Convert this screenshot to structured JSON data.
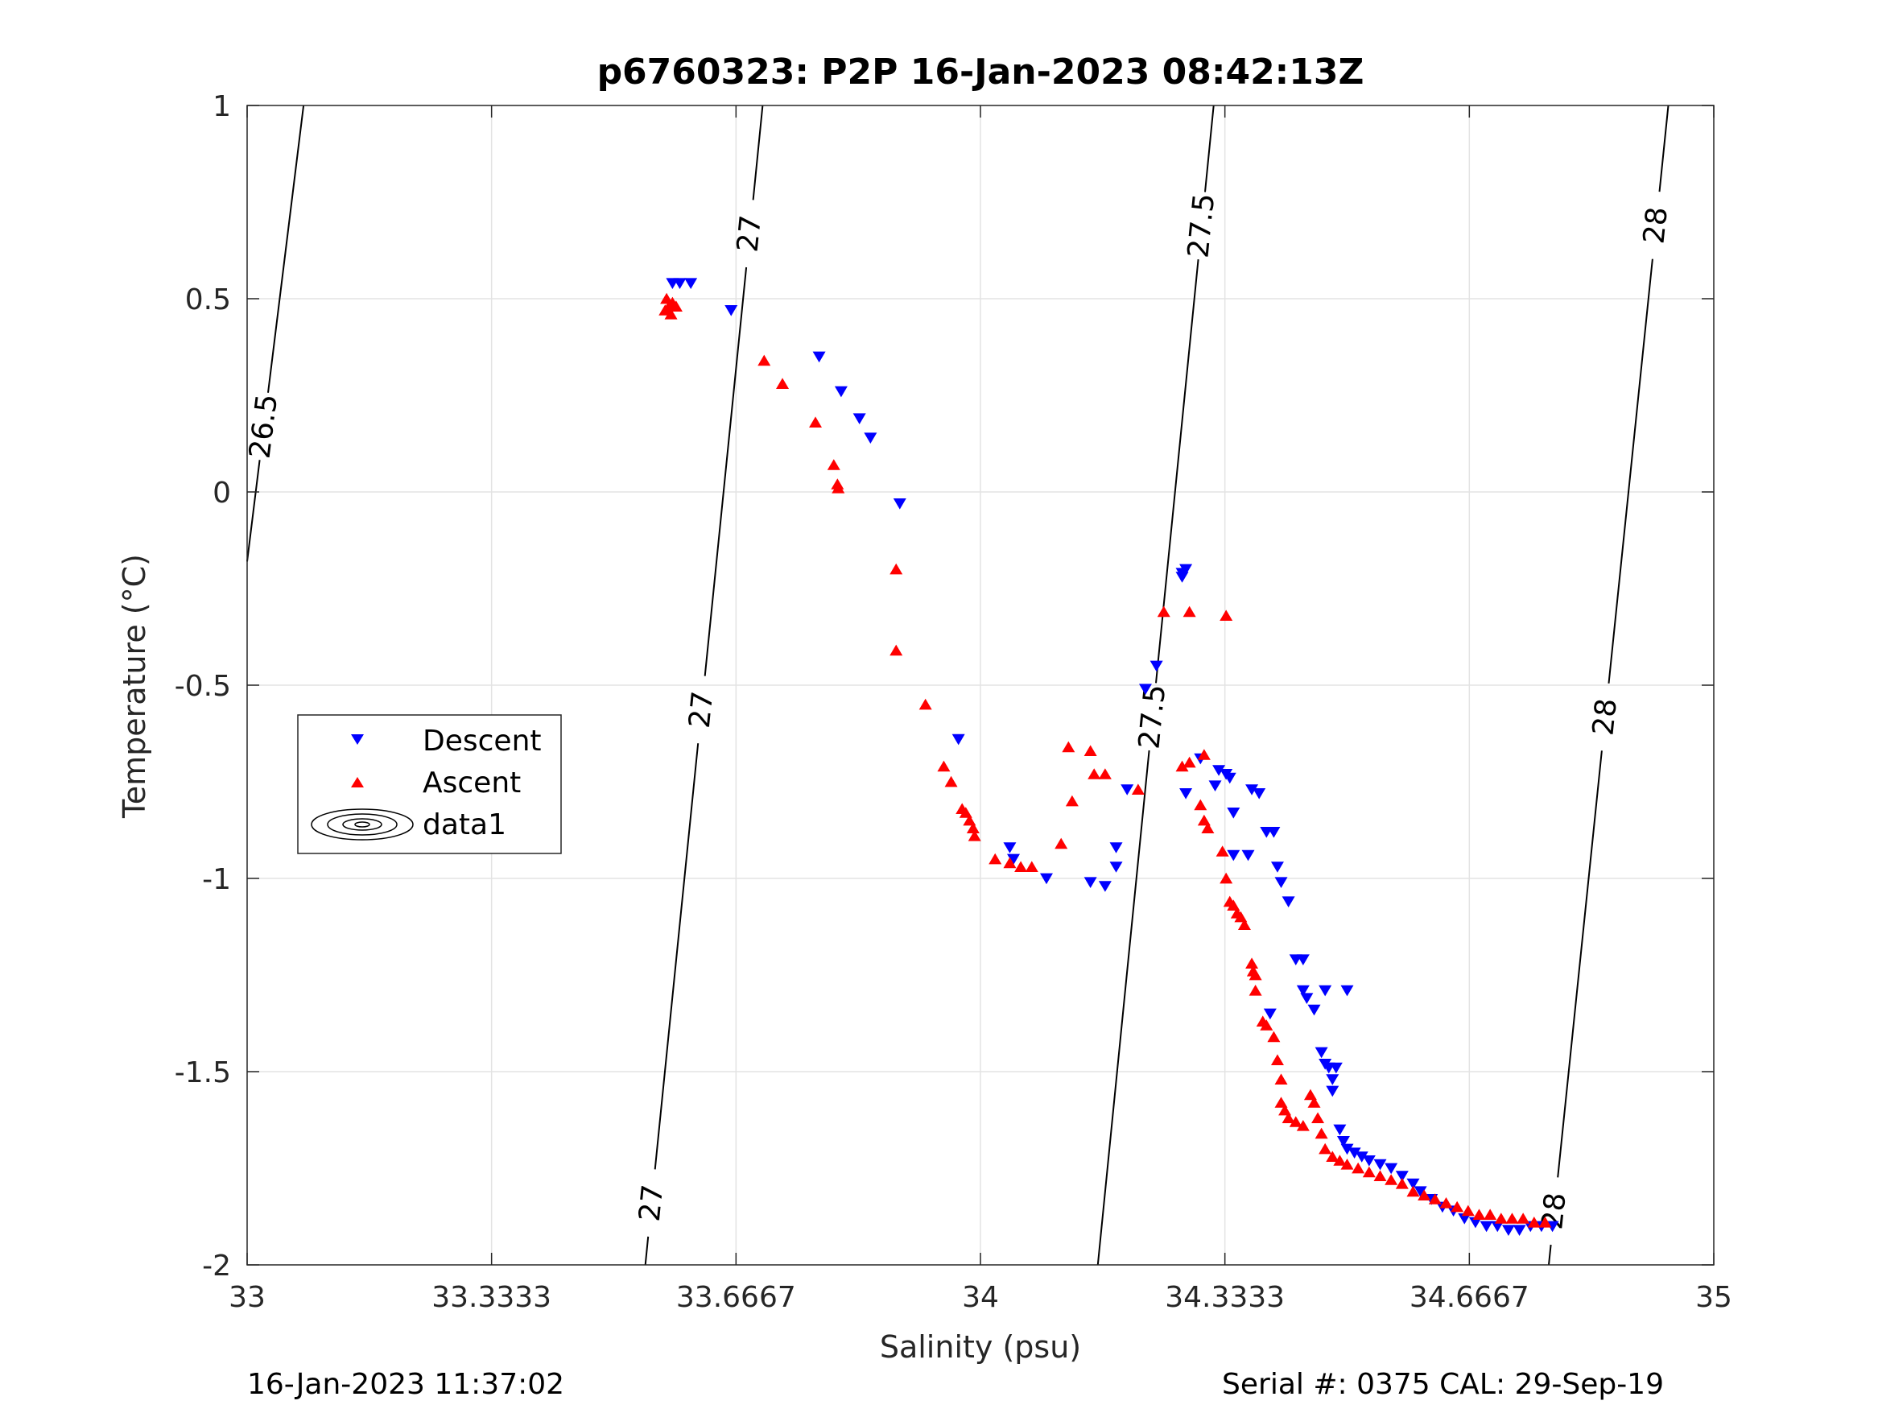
{
  "title": "p6760323: P2P 16-Jan-2023 08:42:13Z",
  "xlabel": "Salinity (psu)",
  "ylabel": "Temperature (°C)",
  "footer_left": "16-Jan-2023 11:37:02",
  "footer_right": "Serial #: 0375  CAL: 29-Sep-19",
  "legend": {
    "descent": "Descent",
    "ascent": "Ascent",
    "contours": "data1"
  },
  "colors": {
    "descent": "#0000ff",
    "ascent": "#ff0000",
    "contour": "#000000",
    "grid": "#e3e3e3",
    "axis": "#262626"
  },
  "chart_data": {
    "type": "scatter",
    "xlim": [
      33,
      35
    ],
    "ylim": [
      -2,
      1
    ],
    "xticks": [
      "33",
      "33.3333",
      "33.6667",
      "34",
      "34.3333",
      "34.6667",
      "35"
    ],
    "yticks": [
      "-2",
      "-1.5",
      "-1",
      "-0.5",
      "0",
      "0.5",
      "1"
    ],
    "grid": true,
    "legend_position": "left",
    "contours": [
      {
        "level": "26.5",
        "points": [
          [
            33.0,
            -0.18
          ],
          [
            33.077,
            1.0
          ]
        ],
        "labels": [
          [
            33.022,
            0.17
          ]
        ]
      },
      {
        "level": "27",
        "points": [
          [
            33.543,
            -2.0
          ],
          [
            33.703,
            1.0
          ]
        ],
        "labels": [
          [
            33.552,
            -1.84
          ],
          [
            33.602,
            -0.56
          ],
          [
            33.677,
            0.67
          ]
        ]
      },
      {
        "level": "27.5",
        "points": [
          [
            34.16,
            -2.0
          ],
          [
            34.318,
            1.0
          ]
        ],
        "labels": [
          [
            34.226,
            -0.58
          ],
          [
            34.296,
            0.69
          ]
        ]
      },
      {
        "level": "28",
        "points": [
          [
            34.775,
            -2.0
          ],
          [
            34.938,
            1.0
          ]
        ],
        "labels": [
          [
            34.778,
            -1.86
          ],
          [
            34.84,
            -0.58
          ],
          [
            34.92,
            0.69
          ]
        ]
      }
    ],
    "series": [
      {
        "name": "Descent",
        "marker": "triangle-down",
        "points": [
          [
            33.58,
            0.54
          ],
          [
            33.59,
            0.54
          ],
          [
            33.605,
            0.54
          ],
          [
            33.66,
            0.47
          ],
          [
            33.78,
            0.35
          ],
          [
            33.81,
            0.26
          ],
          [
            33.835,
            0.19
          ],
          [
            33.85,
            0.14
          ],
          [
            33.89,
            -0.03
          ],
          [
            33.97,
            -0.64
          ],
          [
            34.04,
            -0.92
          ],
          [
            34.045,
            -0.95
          ],
          [
            34.09,
            -1.0
          ],
          [
            34.15,
            -1.01
          ],
          [
            34.17,
            -1.02
          ],
          [
            34.185,
            -0.97
          ],
          [
            34.185,
            -0.92
          ],
          [
            34.2,
            -0.77
          ],
          [
            34.225,
            -0.51
          ],
          [
            34.24,
            -0.45
          ],
          [
            34.275,
            -0.21
          ],
          [
            34.28,
            -0.2
          ],
          [
            34.275,
            -0.22
          ],
          [
            34.28,
            -0.78
          ],
          [
            34.3,
            -0.69
          ],
          [
            34.325,
            -0.72
          ],
          [
            34.335,
            -0.73
          ],
          [
            34.34,
            -0.74
          ],
          [
            34.32,
            -0.76
          ],
          [
            34.345,
            -0.83
          ],
          [
            34.37,
            -0.77
          ],
          [
            34.38,
            -0.78
          ],
          [
            34.345,
            -0.94
          ],
          [
            34.365,
            -0.94
          ],
          [
            34.39,
            -0.88
          ],
          [
            34.4,
            -0.88
          ],
          [
            34.405,
            -0.97
          ],
          [
            34.41,
            -1.01
          ],
          [
            34.42,
            -1.06
          ],
          [
            34.395,
            -1.35
          ],
          [
            34.43,
            -1.21
          ],
          [
            34.44,
            -1.21
          ],
          [
            34.44,
            -1.29
          ],
          [
            34.445,
            -1.31
          ],
          [
            34.455,
            -1.34
          ],
          [
            34.47,
            -1.29
          ],
          [
            34.5,
            -1.29
          ],
          [
            34.465,
            -1.45
          ],
          [
            34.47,
            -1.48
          ],
          [
            34.475,
            -1.49
          ],
          [
            34.48,
            -1.52
          ],
          [
            34.485,
            -1.49
          ],
          [
            34.48,
            -1.55
          ],
          [
            34.49,
            -1.65
          ],
          [
            34.495,
            -1.68
          ],
          [
            34.5,
            -1.7
          ],
          [
            34.51,
            -1.71
          ],
          [
            34.52,
            -1.72
          ],
          [
            34.53,
            -1.73
          ],
          [
            34.545,
            -1.74
          ],
          [
            34.56,
            -1.75
          ],
          [
            34.575,
            -1.77
          ],
          [
            34.59,
            -1.79
          ],
          [
            34.6,
            -1.81
          ],
          [
            34.615,
            -1.83
          ],
          [
            34.63,
            -1.85
          ],
          [
            34.645,
            -1.86
          ],
          [
            34.66,
            -1.88
          ],
          [
            34.675,
            -1.89
          ],
          [
            34.69,
            -1.9
          ],
          [
            34.705,
            -1.9
          ],
          [
            34.72,
            -1.91
          ],
          [
            34.735,
            -1.91
          ],
          [
            34.75,
            -1.9
          ],
          [
            34.765,
            -1.9
          ],
          [
            34.78,
            -1.9
          ]
        ]
      },
      {
        "name": "Ascent",
        "marker": "triangle-up",
        "points": [
          [
            33.57,
            0.47
          ],
          [
            33.575,
            0.48
          ],
          [
            33.58,
            0.49
          ],
          [
            33.585,
            0.48
          ],
          [
            33.572,
            0.5
          ],
          [
            33.578,
            0.46
          ],
          [
            33.705,
            0.34
          ],
          [
            33.73,
            0.28
          ],
          [
            33.775,
            0.18
          ],
          [
            33.8,
            0.07
          ],
          [
            33.805,
            0.02
          ],
          [
            33.806,
            0.01
          ],
          [
            33.885,
            -0.2
          ],
          [
            33.885,
            -0.41
          ],
          [
            33.925,
            -0.55
          ],
          [
            33.95,
            -0.71
          ],
          [
            33.96,
            -0.75
          ],
          [
            33.975,
            -0.82
          ],
          [
            33.98,
            -0.83
          ],
          [
            33.985,
            -0.85
          ],
          [
            33.99,
            -0.87
          ],
          [
            33.992,
            -0.89
          ],
          [
            34.02,
            -0.95
          ],
          [
            34.04,
            -0.96
          ],
          [
            34.055,
            -0.97
          ],
          [
            34.07,
            -0.97
          ],
          [
            34.11,
            -0.91
          ],
          [
            34.12,
            -0.66
          ],
          [
            34.125,
            -0.8
          ],
          [
            34.15,
            -0.67
          ],
          [
            34.155,
            -0.73
          ],
          [
            34.17,
            -0.73
          ],
          [
            34.215,
            -0.77
          ],
          [
            34.25,
            -0.31
          ],
          [
            34.285,
            -0.31
          ],
          [
            34.335,
            -0.32
          ],
          [
            34.275,
            -0.71
          ],
          [
            34.285,
            -0.7
          ],
          [
            34.305,
            -0.68
          ],
          [
            34.3,
            -0.81
          ],
          [
            34.305,
            -0.85
          ],
          [
            34.31,
            -0.87
          ],
          [
            34.33,
            -0.93
          ],
          [
            34.335,
            -1.0
          ],
          [
            34.34,
            -1.06
          ],
          [
            34.345,
            -1.07
          ],
          [
            34.35,
            -1.09
          ],
          [
            34.355,
            -1.1
          ],
          [
            34.36,
            -1.12
          ],
          [
            34.37,
            -1.22
          ],
          [
            34.372,
            -1.24
          ],
          [
            34.375,
            -1.25
          ],
          [
            34.375,
            -1.29
          ],
          [
            34.385,
            -1.37
          ],
          [
            34.39,
            -1.38
          ],
          [
            34.4,
            -1.41
          ],
          [
            34.405,
            -1.47
          ],
          [
            34.41,
            -1.52
          ],
          [
            34.41,
            -1.58
          ],
          [
            34.415,
            -1.6
          ],
          [
            34.42,
            -1.62
          ],
          [
            34.43,
            -1.63
          ],
          [
            34.44,
            -1.64
          ],
          [
            34.45,
            -1.56
          ],
          [
            34.455,
            -1.58
          ],
          [
            34.46,
            -1.62
          ],
          [
            34.465,
            -1.66
          ],
          [
            34.47,
            -1.7
          ],
          [
            34.48,
            -1.72
          ],
          [
            34.49,
            -1.73
          ],
          [
            34.5,
            -1.74
          ],
          [
            34.515,
            -1.75
          ],
          [
            34.53,
            -1.76
          ],
          [
            34.545,
            -1.77
          ],
          [
            34.56,
            -1.78
          ],
          [
            34.575,
            -1.79
          ],
          [
            34.59,
            -1.81
          ],
          [
            34.605,
            -1.82
          ],
          [
            34.62,
            -1.83
          ],
          [
            34.635,
            -1.84
          ],
          [
            34.65,
            -1.85
          ],
          [
            34.665,
            -1.86
          ],
          [
            34.68,
            -1.87
          ],
          [
            34.695,
            -1.87
          ],
          [
            34.71,
            -1.88
          ],
          [
            34.725,
            -1.88
          ],
          [
            34.74,
            -1.88
          ],
          [
            34.755,
            -1.89
          ],
          [
            34.77,
            -1.89
          ]
        ]
      }
    ]
  }
}
